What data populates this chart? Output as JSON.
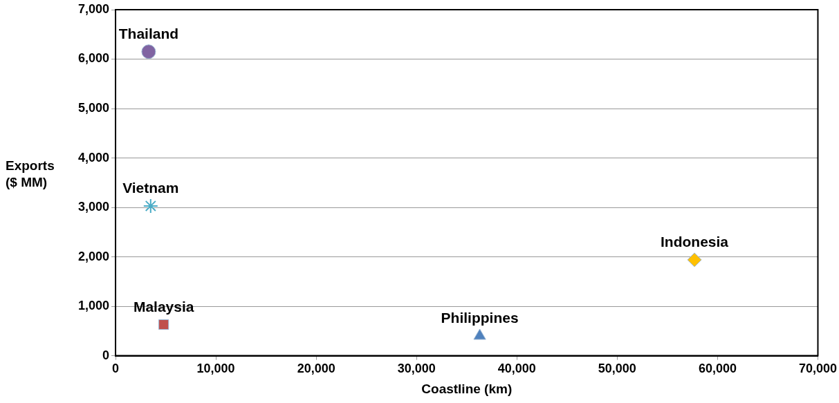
{
  "chart_data": {
    "type": "scatter",
    "xlabel": "Coastline (km)",
    "ylabel": "Exports ($ MM)",
    "xlim": [
      0,
      70000
    ],
    "xticks": [
      0,
      {
        "value": 10000,
        "label": "10,000"
      },
      {
        "value": 20000,
        "label": "20,000"
      },
      {
        "value": 30000,
        "label": "30,000"
      },
      {
        "value": 40000,
        "label": "40,000"
      },
      {
        "value": 50000,
        "label": "50,000"
      },
      {
        "value": 60000,
        "label": "60,000"
      },
      {
        "value": 70000,
        "label": "70,000"
      }
    ],
    "ylim": [
      0,
      7000
    ],
    "yticks": [
      0,
      {
        "value": 1000,
        "label": "1,000"
      },
      {
        "value": 2000,
        "label": "2,000"
      },
      {
        "value": 3000,
        "label": "3,000"
      },
      {
        "value": 4000,
        "label": "4,000"
      },
      {
        "value": 5000,
        "label": "5,000"
      },
      {
        "value": 6000,
        "label": "6,000"
      },
      {
        "value": 7000,
        "label": "7,000"
      }
    ],
    "grid": "y",
    "legend": false,
    "series": [
      {
        "name": "Thailand",
        "color": "#8064a2",
        "marker": "circle",
        "x": [
          3300
        ],
        "values": [
          6150
        ]
      },
      {
        "name": "Vietnam",
        "color": "#4bacc6",
        "marker": "cross",
        "x": [
          3500
        ],
        "values": [
          3030
        ]
      },
      {
        "name": "Malaysia",
        "color": "#c0504d",
        "marker": "square",
        "x": [
          4800
        ],
        "values": [
          630
        ]
      },
      {
        "name": "Philippines",
        "color": "#4f81bd",
        "marker": "triangle",
        "x": [
          36300
        ],
        "values": [
          400
        ]
      },
      {
        "name": "Indonesia",
        "color": "#ffc000",
        "marker": "diamond",
        "x": [
          57700
        ],
        "values": [
          1940
        ]
      }
    ]
  }
}
